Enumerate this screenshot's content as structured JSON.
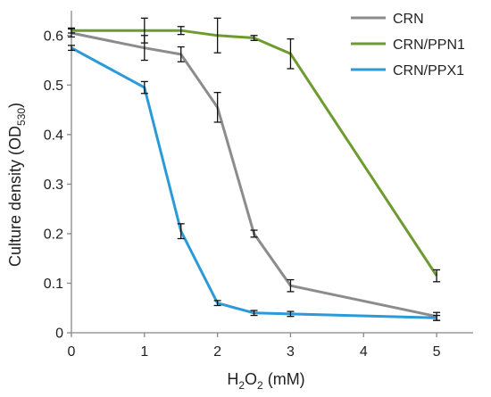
{
  "chart_data": {
    "type": "line",
    "xlabel": {
      "main": "H",
      "sub": "2",
      "rest1": "O",
      "sub2": "2",
      "rest2": " (mM)"
    },
    "ylabel": {
      "main": "Culture density (OD",
      "sub": "530",
      "rest": ")"
    },
    "xlim": [
      0,
      5.5
    ],
    "ylim": [
      0,
      0.65
    ],
    "xticks": [
      0,
      1,
      2,
      3,
      4,
      5
    ],
    "xtick_labels": [
      "0",
      "1",
      "2",
      "3",
      "4",
      "5"
    ],
    "yticks": [
      0,
      0.1,
      0.2,
      0.3,
      0.4,
      0.5,
      0.6
    ],
    "ytick_labels": [
      "0",
      "0.1",
      "0.2",
      "0.3",
      "0.4",
      "0.5",
      "0.6"
    ],
    "grid": false,
    "legend_position": "top-right",
    "series": [
      {
        "name": "CRN",
        "color": "#8c8c8c",
        "x": [
          0,
          1,
          1.5,
          2,
          2.5,
          3,
          5
        ],
        "y": [
          0.605,
          0.575,
          0.562,
          0.455,
          0.2,
          0.095,
          0.033
        ],
        "err": [
          0.008,
          0.025,
          0.015,
          0.03,
          0.007,
          0.012,
          0.008
        ]
      },
      {
        "name": "CRN/PPN1",
        "color": "#6d9b2f",
        "x": [
          0,
          1,
          1.5,
          2,
          2.5,
          3,
          5
        ],
        "y": [
          0.61,
          0.61,
          0.61,
          0.6,
          0.595,
          0.563,
          0.115
        ],
        "err": [
          0.005,
          0.025,
          0.008,
          0.035,
          0.005,
          0.03,
          0.012
        ]
      },
      {
        "name": "CRN/PPX1",
        "color": "#2a9bd8",
        "x": [
          0,
          1,
          1.5,
          2,
          2.5,
          3,
          5
        ],
        "y": [
          0.575,
          0.495,
          0.205,
          0.06,
          0.04,
          0.038,
          0.03
        ],
        "err": [
          0.005,
          0.012,
          0.015,
          0.005,
          0.005,
          0.005,
          0.005
        ]
      }
    ]
  }
}
